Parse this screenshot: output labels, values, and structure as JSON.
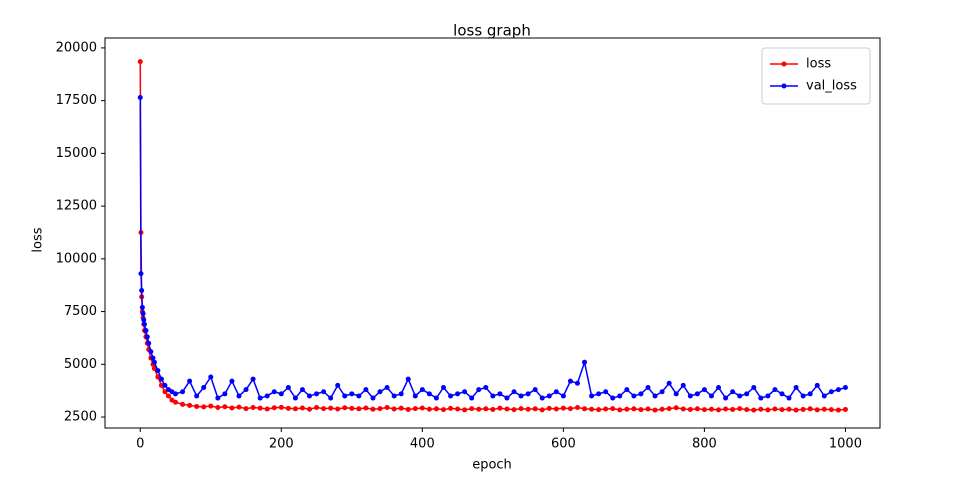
{
  "chart_data": {
    "type": "line",
    "title": "loss graph",
    "x_label": "epoch",
    "y_label": "loss",
    "x": [
      0,
      1,
      2,
      3,
      4,
      5,
      6,
      8,
      10,
      12,
      15,
      18,
      20,
      25,
      30,
      35,
      40,
      45,
      50,
      60,
      70,
      80,
      90,
      100,
      110,
      120,
      130,
      140,
      150,
      160,
      170,
      180,
      190,
      200,
      210,
      220,
      230,
      240,
      250,
      260,
      270,
      280,
      290,
      300,
      310,
      320,
      330,
      340,
      350,
      360,
      370,
      380,
      390,
      400,
      410,
      420,
      430,
      440,
      450,
      460,
      470,
      480,
      490,
      500,
      510,
      520,
      530,
      540,
      550,
      560,
      570,
      580,
      590,
      600,
      610,
      620,
      630,
      640,
      650,
      660,
      670,
      680,
      690,
      700,
      710,
      720,
      730,
      740,
      750,
      760,
      770,
      780,
      790,
      800,
      810,
      820,
      830,
      840,
      850,
      860,
      870,
      880,
      890,
      900,
      910,
      920,
      930,
      940,
      950,
      960,
      970,
      980,
      990,
      1000
    ],
    "series": [
      {
        "name": "loss",
        "color": "#ff0000",
        "values": [
          19350,
          11250,
          8200,
          7500,
          7200,
          6900,
          6600,
          6300,
          6000,
          5700,
          5300,
          5000,
          4800,
          4400,
          4000,
          3700,
          3500,
          3300,
          3200,
          3100,
          3050,
          3000,
          2980,
          3020,
          2950,
          2990,
          2930,
          2970,
          2900,
          2950,
          2920,
          2880,
          2940,
          2960,
          2910,
          2890,
          2930,
          2870,
          2950,
          2900,
          2920,
          2880,
          2940,
          2910,
          2890,
          2930,
          2870,
          2900,
          2950,
          2880,
          2920,
          2860,
          2900,
          2930,
          2870,
          2890,
          2850,
          2910,
          2880,
          2840,
          2900,
          2870,
          2890,
          2860,
          2920,
          2880,
          2850,
          2900,
          2870,
          2890,
          2840,
          2910,
          2880,
          2920,
          2900,
          2950,
          2890,
          2870,
          2850,
          2880,
          2900,
          2840,
          2870,
          2890,
          2850,
          2880,
          2830,
          2870,
          2900,
          2940,
          2880,
          2860,
          2890,
          2850,
          2870,
          2840,
          2880,
          2860,
          2900,
          2850,
          2830,
          2870,
          2840,
          2880,
          2850,
          2870,
          2830,
          2860,
          2890,
          2840,
          2870,
          2850,
          2830,
          2860
        ]
      },
      {
        "name": "val_loss",
        "color": "#0000ff",
        "values": [
          17650,
          9300,
          8500,
          7700,
          7400,
          7100,
          6900,
          6600,
          6300,
          6000,
          5600,
          5300,
          5100,
          4700,
          4300,
          4000,
          3800,
          3700,
          3600,
          3700,
          4200,
          3500,
          3900,
          4400,
          3400,
          3600,
          4200,
          3500,
          3800,
          4300,
          3400,
          3500,
          3700,
          3600,
          3900,
          3400,
          3800,
          3500,
          3600,
          3700,
          3400,
          4000,
          3500,
          3600,
          3500,
          3800,
          3400,
          3700,
          3900,
          3500,
          3600,
          4300,
          3500,
          3800,
          3600,
          3400,
          3900,
          3500,
          3600,
          3700,
          3400,
          3800,
          3900,
          3500,
          3600,
          3400,
          3700,
          3500,
          3600,
          3800,
          3400,
          3500,
          3700,
          3500,
          4200,
          4100,
          5100,
          3500,
          3600,
          3700,
          3400,
          3500,
          3800,
          3500,
          3600,
          3900,
          3500,
          3700,
          4100,
          3600,
          4000,
          3500,
          3600,
          3800,
          3500,
          3900,
          3400,
          3700,
          3500,
          3600,
          3900,
          3400,
          3500,
          3800,
          3600,
          3400,
          3900,
          3500,
          3600,
          4000,
          3500,
          3700,
          3800,
          3900
        ]
      }
    ],
    "xlim": [
      -50,
      1049
    ],
    "ylim": [
      1980,
      20470
    ],
    "xticks": [
      0,
      200,
      400,
      600,
      800,
      1000
    ],
    "yticks": [
      2500,
      5000,
      7500,
      10000,
      12500,
      15000,
      17500,
      20000
    ],
    "legend": "upper right"
  }
}
